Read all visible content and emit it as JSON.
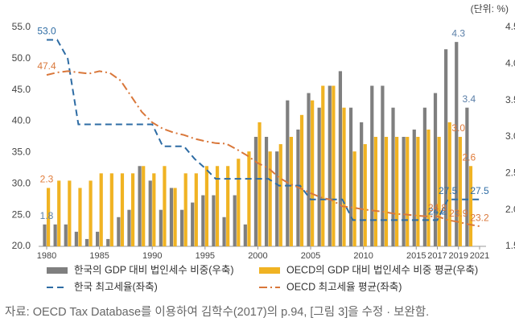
{
  "chart_data": {
    "type": "bar-line",
    "unit_note": "(단위: %)",
    "source_note": "자료: OECD Tax Database를 이용하여 김학수(2017)의 p.94, [그림 3]을 수정 · 보완함.",
    "x": [
      1980,
      1981,
      1982,
      1983,
      1984,
      1985,
      1986,
      1987,
      1988,
      1989,
      1990,
      1991,
      1992,
      1993,
      1994,
      1995,
      1996,
      1997,
      1998,
      1999,
      2000,
      2001,
      2002,
      2003,
      2004,
      2005,
      2006,
      2007,
      2008,
      2009,
      2010,
      2011,
      2012,
      2013,
      2014,
      2015,
      2016,
      2017,
      2018,
      2019,
      2020,
      2021
    ],
    "xticks": [
      1980,
      1985,
      1990,
      1995,
      2000,
      2005,
      2010,
      2015,
      2017,
      2019,
      2021
    ],
    "ylim": [
      20,
      55
    ],
    "yticks": [
      {
        "value": 20,
        "label": "20.0"
      },
      {
        "value": 25,
        "label": "25.0"
      },
      {
        "value": 30,
        "label": "30.0"
      },
      {
        "value": 35,
        "label": "35.0"
      },
      {
        "value": 40,
        "label": "40.0"
      },
      {
        "value": 45,
        "label": "45.0"
      },
      {
        "value": 50,
        "label": "50.0"
      },
      {
        "value": 55,
        "label": "55.0"
      }
    ],
    "y2lim": [
      1.5,
      4.5
    ],
    "y2ticks": [
      1.5,
      {
        "value": 2,
        "label": "2.0"
      },
      2.5,
      {
        "value": 3,
        "label": "3.0"
      },
      3.5,
      {
        "value": 4,
        "label": "4.0"
      },
      4.5
    ],
    "grid": false,
    "series": [
      {
        "name": "한국의 GDP 대비 법인세수 비중(우축)",
        "type": "bar",
        "axis": "y2",
        "color": "#7f7f7f",
        "values": [
          1.8,
          1.8,
          1.8,
          1.7,
          1.6,
          1.7,
          1.6,
          1.9,
          2.0,
          2.6,
          2.4,
          2.0,
          2.3,
          2.0,
          2.1,
          2.2,
          2.2,
          1.9,
          2.2,
          1.8,
          3.0,
          3.0,
          2.8,
          3.5,
          3.1,
          3.6,
          3.4,
          3.7,
          3.9,
          3.4,
          3.2,
          3.7,
          3.7,
          3.4,
          3.0,
          3.1,
          3.4,
          3.6,
          4.2,
          4.3,
          3.4,
          null
        ],
        "value_labels": [
          "1.8",
          null,
          null,
          null,
          null,
          null,
          null,
          null,
          null,
          null,
          null,
          null,
          null,
          null,
          null,
          null,
          null,
          null,
          null,
          null,
          null,
          null,
          null,
          null,
          null,
          null,
          null,
          null,
          null,
          null,
          null,
          null,
          null,
          null,
          null,
          null,
          null,
          null,
          null,
          "4.3",
          "3.4",
          null
        ]
      },
      {
        "name": "OECD의 GDP 대비 법인세수 비중 평균(우축)",
        "type": "bar",
        "axis": "y2",
        "color": "#f0b323",
        "values": [
          2.3,
          2.4,
          2.4,
          2.3,
          2.4,
          2.5,
          2.5,
          2.5,
          2.5,
          2.6,
          2.5,
          2.6,
          2.3,
          2.5,
          2.5,
          2.6,
          2.6,
          2.6,
          2.7,
          2.8,
          3.2,
          2.8,
          2.9,
          3.0,
          3.3,
          3.5,
          3.7,
          3.7,
          3.4,
          2.8,
          2.9,
          3.0,
          3.0,
          3.0,
          3.0,
          3.0,
          3.1,
          3.0,
          3.2,
          3.0,
          2.6,
          null
        ],
        "value_labels": [
          "2.3",
          null,
          null,
          null,
          null,
          null,
          null,
          null,
          null,
          null,
          null,
          null,
          null,
          null,
          null,
          null,
          null,
          null,
          null,
          null,
          null,
          null,
          null,
          null,
          null,
          null,
          null,
          null,
          null,
          null,
          null,
          null,
          null,
          null,
          null,
          null,
          null,
          null,
          null,
          "3.0",
          "2.6",
          null
        ]
      },
      {
        "name": "한국 최고세율(좌축)",
        "type": "line",
        "color": "#2e6ca4",
        "dash": "8,5",
        "values": [
          53,
          53,
          50,
          39.5,
          39.5,
          39.5,
          39.5,
          39.5,
          39.5,
          39.5,
          39.5,
          36,
          36,
          36,
          34,
          32.5,
          30.8,
          30.8,
          30.8,
          30.8,
          30.8,
          30.8,
          29.7,
          29.7,
          29.7,
          27.5,
          27.5,
          27.5,
          27.5,
          24.2,
          24.2,
          24.2,
          24.2,
          24.2,
          24.2,
          24.2,
          24.2,
          24.2,
          27.5,
          27.5,
          27.5,
          27.5
        ],
        "value_labels": [
          "53.0",
          null,
          null,
          null,
          null,
          null,
          null,
          null,
          null,
          null,
          null,
          null,
          null,
          null,
          null,
          null,
          null,
          null,
          null,
          null,
          null,
          null,
          null,
          null,
          null,
          null,
          null,
          null,
          null,
          null,
          null,
          null,
          null,
          null,
          null,
          null,
          null,
          "24.2",
          "27.5",
          null,
          null,
          "27.5"
        ]
      },
      {
        "name": "OECD 최고세율 평균(좌축)",
        "type": "line",
        "color": "#d9773a",
        "dash": "10,4,2,4",
        "values": [
          47.4,
          47.8,
          48,
          47.8,
          47.6,
          48,
          47.7,
          46.5,
          44,
          41.5,
          39.8,
          38.8,
          38.2,
          37.8,
          37.2,
          36.8,
          36.5,
          36.4,
          35.5,
          34.5,
          33.3,
          32.5,
          31,
          30,
          29.3,
          28.5,
          27.8,
          27.4,
          26.4,
          26.2,
          25.9,
          25.7,
          25.5,
          25.2,
          25.1,
          24.9,
          24.8,
          24.8,
          24.2,
          23.9,
          23.5,
          23.2
        ],
        "value_labels": [
          "47.4",
          null,
          null,
          null,
          null,
          null,
          null,
          null,
          null,
          null,
          null,
          null,
          null,
          null,
          null,
          null,
          null,
          null,
          null,
          null,
          null,
          null,
          null,
          null,
          null,
          null,
          null,
          null,
          null,
          null,
          null,
          null,
          null,
          null,
          null,
          null,
          null,
          "24.8",
          null,
          "23.9",
          null,
          "23.2"
        ]
      }
    ]
  }
}
